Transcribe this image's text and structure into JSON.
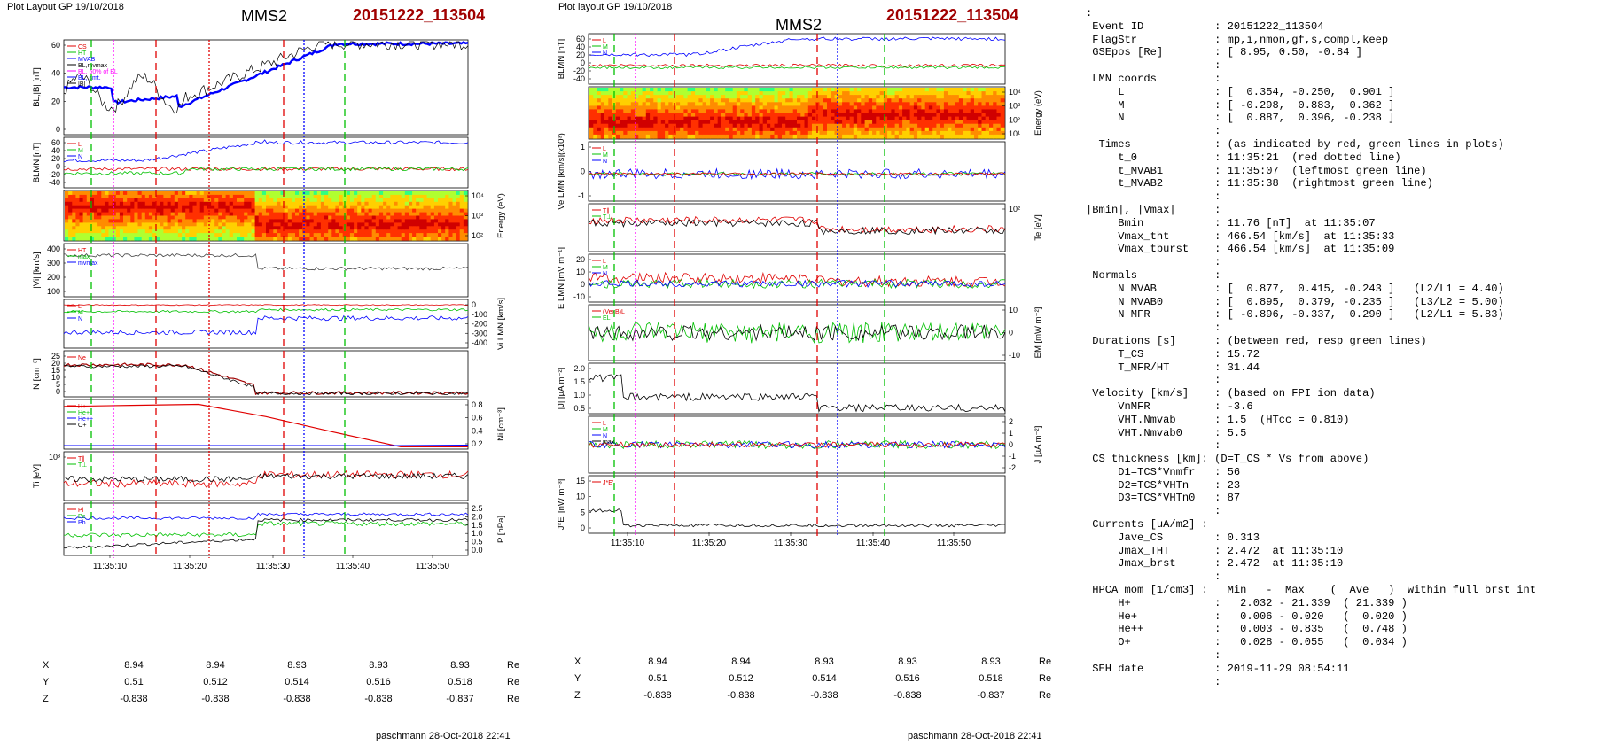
{
  "left": {
    "header": "Plot Layout GP 19/10/2018",
    "spacecraft": "MMS2",
    "event": "20151222_113504",
    "footer": "paschmann 28-Oct-2018 22:41",
    "panels": [
      {
        "ylabel": "BL,|B| [nT]",
        "yticks": [
          "60",
          "40",
          "20",
          "0"
        ],
        "legend": [
          "CS",
          "HT",
          "MVAB",
          "BL,mvmax",
          "BL, 50% of BL",
          "BL, smt.",
          "|B|"
        ]
      },
      {
        "ylabel": "BLMN [nT]",
        "yticks": [
          "60",
          "40",
          "20",
          "0",
          "-20",
          "-40"
        ],
        "legend": [
          "L",
          "M",
          "N"
        ]
      },
      {
        "ylabel": "Energy (eV)",
        "yticks": [
          "10⁴",
          "10³",
          "10²"
        ]
      },
      {
        "ylabel": "|Vi| [km/s]",
        "yticks": [
          "400",
          "300",
          "200",
          "100"
        ],
        "legend": [
          "HT",
          "max",
          "mvmax"
        ]
      },
      {
        "ylabel": "Vi LMN [km/s]",
        "yticks": [
          "0",
          "-100",
          "-200",
          "-300",
          "-400"
        ],
        "legend": [
          "L",
          "M",
          "N"
        ]
      },
      {
        "ylabel": "N [cm⁻³]",
        "yticks": [
          "25",
          "20",
          "15",
          "10",
          "5",
          "0"
        ],
        "legend": [
          "Ne"
        ]
      },
      {
        "ylabel": "Ni [cm⁻³]",
        "yticks": [
          "0.8",
          "0.6",
          "0.4",
          "0.2"
        ],
        "legend": [
          "H+",
          "He+",
          "He++",
          "O+"
        ]
      },
      {
        "ylabel": "Ti [eV]",
        "yticks": [
          "10³"
        ],
        "legend": [
          "T∥",
          "T⊥"
        ]
      },
      {
        "ylabel": "P [nPa]",
        "yticks": [
          "2.5",
          "2.0",
          "1.5",
          "1.0",
          "0.5",
          "0.0"
        ],
        "legend": [
          "Pi",
          "Pe",
          "Pb"
        ]
      }
    ],
    "xticks": [
      "11:35:10",
      "11:35:20",
      "11:35:30",
      "11:35:40",
      "11:35:50"
    ],
    "coords": {
      "labels": [
        "X",
        "Y",
        "Z"
      ],
      "unit": "Re",
      "X": [
        "8.94",
        "8.94",
        "8.93",
        "8.93",
        "8.93"
      ],
      "Y": [
        "0.51",
        "0.512",
        "0.514",
        "0.516",
        "0.518"
      ],
      "Z": [
        "-0.838",
        "-0.838",
        "-0.838",
        "-0.838",
        "-0.837"
      ]
    }
  },
  "middle": {
    "header": "Plot layout GP 19/10/2018",
    "spacecraft": "MMS2",
    "event": "20151222_113504",
    "footer": "paschmann 28-Oct-2018 22:41",
    "panels": [
      {
        "ylabel": "BLMN [nT]",
        "yticks": [
          "60",
          "40",
          "20",
          "0",
          "-20",
          "-40"
        ],
        "legend": [
          "L",
          "M",
          "N"
        ]
      },
      {
        "ylabel": "Energy (eV)",
        "yticks": [
          "10⁴",
          "10³",
          "10²",
          "10¹"
        ]
      },
      {
        "ylabel": "Ve LMN [km/s](x10³)",
        "yticks": [
          "1",
          "0",
          "-1"
        ],
        "legend": [
          "L",
          "M",
          "N"
        ]
      },
      {
        "ylabel": "Te [eV]",
        "yticks": [
          "10²"
        ],
        "legend": [
          "T∥",
          "T⊥"
        ]
      },
      {
        "ylabel": "E LMN [mV m⁻¹]",
        "yticks": [
          "20",
          "10",
          "0",
          "-10"
        ],
        "legend": [
          "L",
          "M",
          "N"
        ]
      },
      {
        "ylabel": "EM [mW m⁻²]",
        "yticks": [
          "10",
          "0",
          "-10"
        ],
        "legend": [
          "(VexB)L",
          "EL"
        ]
      },
      {
        "ylabel": "|J| [µA m⁻²]",
        "yticks": [
          "2.0",
          "1.5",
          "1.0",
          "0.5"
        ]
      },
      {
        "ylabel": "J [µA m⁻²]",
        "yticks": [
          "2",
          "1",
          "0",
          "-1",
          "-2"
        ],
        "legend": [
          "L",
          "M",
          "N",
          "max"
        ]
      },
      {
        "ylabel": "J*E' [nW m⁻³]",
        "yticks": [
          "15",
          "10",
          "5",
          "0"
        ],
        "legend": [
          "J*E'"
        ]
      }
    ],
    "xticks": [
      "11:35:10",
      "11:35:20",
      "11:35:30",
      "11:35:40",
      "11:35:50"
    ],
    "coords": {
      "labels": [
        "X",
        "Y",
        "Z"
      ],
      "unit": "Re",
      "X": [
        "8.94",
        "8.94",
        "8.93",
        "8.93",
        "8.93"
      ],
      "Y": [
        "0.51",
        "0.512",
        "0.514",
        "0.516",
        "0.518"
      ],
      "Z": [
        "-0.838",
        "-0.838",
        "-0.838",
        "-0.838",
        "-0.837"
      ]
    }
  },
  "summary": [
    ":",
    " Event ID           : 20151222_113504",
    " FlagStr            : mp,i,nmon,gf,s,compl,keep",
    " GSEpos [Re]        : [ 8.95, 0.50, -0.84 ]",
    "                    :",
    " LMN coords         :",
    "     L              : [  0.354, -0.250,  0.901 ]",
    "     M              : [ -0.298,  0.883,  0.362 ]",
    "     N              : [  0.887,  0.396, -0.238 ]",
    "                    :",
    "  Times             : (as indicated by red, green lines in plots)",
    "     t_0            : 11:35:21  (red dotted line)",
    "     t_MVAB1        : 11:35:07  (leftmost green line)",
    "     t_MVAB2        : 11:35:38  (rightmost green line)",
    "                    :",
    "|Bmin|, |Vmax|      :",
    "     Bmin           : 11.76 [nT]  at 11:35:07",
    "     Vmax_tht       : 466.54 [km/s]  at 11:35:33",
    "     Vmax_tburst    : 466.54 [km/s]  at 11:35:09",
    "                    :",
    " Normals            :",
    "     N MVAB         : [  0.877,  0.415, -0.243 ]   (L2/L1 = 4.40)",
    "     N MVAB0        : [  0.895,  0.379, -0.235 ]   (L3/L2 = 5.00)",
    "     N MFR          : [ -0.896, -0.337,  0.290 ]   (L2/L1 = 5.83)",
    "                    :",
    " Durations [s]      : (between red, resp green lines)",
    "     T_CS           : 15.72",
    "     T_MFR/HT       : 31.44",
    "                    :",
    " Velocity [km/s]    : (based on FPI ion data)",
    "     VnMFR          : -3.6",
    "     VHT.Nmvab      : 1.5  (HTcc = 0.810)",
    "     VHT.Nmvab0     : 5.5",
    "                    :",
    " CS thickness [km]: (D=T_CS * Vs from above)",
    "     D1=TCS*Vnmfr   : 56",
    "     D2=TCS*VHTn    : 23",
    "     D3=TCS*VHTn0   : 87",
    "                    :",
    " Currents [uA/m2] :",
    "     Jave_CS        : 0.313",
    "     Jmax_THT       : 2.472  at 11:35:10",
    "     Jmax_brst      : 2.472  at 11:35:10",
    "                    :",
    " HPCA mom [1/cm3] :   Min   -  Max    (  Ave   )  within full brst int",
    "     H+             :   2.032 - 21.339  ( 21.339 )",
    "     He+            :   0.006 - 0.020   (  0.020 )",
    "     He++           :   0.003 - 0.835   (  0.748 )",
    "     O+             :   0.028 - 0.055   (  0.034 )",
    "                    :",
    " SEH date           : 2019-11-29 08:54:11",
    "                    :"
  ],
  "colors": {
    "red": "#e00000",
    "green": "#00c000",
    "blue": "#0000ff",
    "black": "#000000",
    "magenta": "#ff00ff",
    "darkred": "#a00000"
  },
  "chart_data": [
    {
      "type": "line",
      "title": "MMS2",
      "xlabel": "",
      "ylabel": "BL,|B| [nT]",
      "xlim": [
        "11:35:04",
        "11:35:55"
      ],
      "ylim": [
        -20,
        70
      ],
      "series": [
        {
          "name": "BL, smt.",
          "x": [
            "11:35:04",
            "11:35:10",
            "11:35:14",
            "11:35:20",
            "11:35:30",
            "11:35:40",
            "11:35:50"
          ],
          "values": [
            25,
            25,
            5,
            30,
            60,
            70,
            68
          ]
        }
      ]
    },
    {
      "type": "line",
      "title": "MMS2",
      "xlabel": "",
      "ylabel": "N [cm⁻³]",
      "xlim": [
        "11:35:04",
        "11:35:55"
      ],
      "ylim": [
        0,
        25
      ],
      "series": [
        {
          "name": "Ne",
          "x": [
            "11:35:04",
            "11:35:10",
            "11:35:20",
            "11:35:28",
            "11:35:32",
            "11:35:55"
          ],
          "values": [
            20,
            18,
            19,
            8,
            2,
            1
          ]
        }
      ]
    },
    {
      "type": "line",
      "title": "MMS2",
      "xlabel": "",
      "ylabel": "Ni [cm⁻³]",
      "xlim": [
        "11:35:04",
        "11:35:55"
      ],
      "ylim": [
        0,
        0.8
      ],
      "series": [
        {
          "name": "H+",
          "x": [
            "11:35:12",
            "11:35:22",
            "11:35:32"
          ],
          "values": [
            0.8,
            0.84,
            0.01
          ]
        },
        {
          "name": "O+",
          "x": [
            "11:35:12",
            "11:35:22",
            "11:35:32",
            "11:35:42"
          ],
          "values": [
            0.03,
            0.03,
            0.03,
            0.04
          ]
        }
      ]
    },
    {
      "type": "line",
      "title": "MMS2",
      "xlabel": "",
      "ylabel": "|J| [µA m⁻²]",
      "xlim": [
        "11:35:04",
        "11:35:55"
      ],
      "ylim": [
        0,
        2.5
      ],
      "series": [
        {
          "name": "|J|",
          "x": [
            "11:35:05",
            "11:35:07",
            "11:35:10",
            "11:35:20",
            "11:35:30",
            "11:35:34",
            "11:35:55"
          ],
          "values": [
            0.5,
            2.0,
            2.3,
            0.8,
            0.8,
            0.2,
            0.2
          ]
        }
      ]
    }
  ]
}
